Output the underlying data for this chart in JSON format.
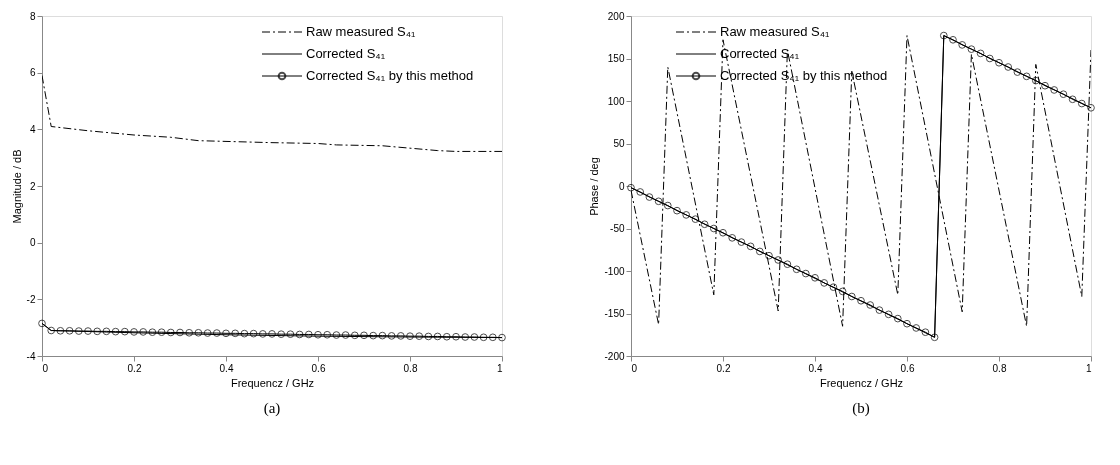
{
  "chart_data": [
    {
      "type": "line",
      "xlabel": "Frequencz / GHz",
      "ylabel": "Magnitude / dB",
      "xlim": [
        0,
        1
      ],
      "ylim": [
        -4,
        8
      ],
      "xticks": [
        0,
        0.2,
        0.4,
        0.6,
        0.8,
        1
      ],
      "yticks": [
        -4,
        -2,
        0,
        2,
        4,
        6,
        8
      ],
      "grid": false,
      "legend": "top right",
      "annotations": [
        "(a)"
      ],
      "series": [
        {
          "name": "Raw measured S₄₁",
          "color": "#000000",
          "line_style": "dashed",
          "marker": "none",
          "x": [
            0,
            0.02,
            0.1,
            0.2,
            0.28,
            0.34,
            0.5,
            0.6,
            0.64,
            0.74,
            0.86,
            0.9,
            1
          ],
          "values": [
            5.9,
            4.1,
            3.95,
            3.8,
            3.72,
            3.6,
            3.53,
            3.5,
            3.45,
            3.42,
            3.25,
            3.22,
            3.22
          ]
        },
        {
          "name": "Corrected S₄₁",
          "color": "#000000",
          "line_style": "solid",
          "marker": "none",
          "x": [
            0,
            0.02,
            0.2,
            0.4,
            0.6,
            0.8,
            1
          ],
          "values": [
            -2.85,
            -3.1,
            -3.18,
            -3.25,
            -3.3,
            -3.33,
            -3.35
          ]
        },
        {
          "name": "Corrected S₄₁ by this method",
          "color": "#000000",
          "line_style": "solid",
          "marker": "circle",
          "x": [
            0,
            0.02,
            0.04,
            0.06,
            0.08,
            0.1,
            0.12,
            0.14,
            0.16,
            0.18,
            0.2,
            0.22,
            0.24,
            0.26,
            0.28,
            0.3,
            0.32,
            0.34,
            0.36,
            0.38,
            0.4,
            0.42,
            0.44,
            0.46,
            0.48,
            0.5,
            0.52,
            0.54,
            0.56,
            0.58,
            0.6,
            0.62,
            0.64,
            0.66,
            0.68,
            0.7,
            0.72,
            0.74,
            0.76,
            0.78,
            0.8,
            0.82,
            0.84,
            0.86,
            0.88,
            0.9,
            0.92,
            0.94,
            0.96,
            0.98,
            1
          ],
          "values": [
            -2.85,
            -3.1,
            -3.11,
            -3.11,
            -3.12,
            -3.12,
            -3.13,
            -3.13,
            -3.14,
            -3.14,
            -3.15,
            -3.15,
            -3.16,
            -3.16,
            -3.17,
            -3.17,
            -3.18,
            -3.18,
            -3.19,
            -3.19,
            -3.2,
            -3.2,
            -3.21,
            -3.21,
            -3.22,
            -3.22,
            -3.23,
            -3.23,
            -3.24,
            -3.24,
            -3.25,
            -3.25,
            -3.26,
            -3.26,
            -3.27,
            -3.27,
            -3.28,
            -3.28,
            -3.29,
            -3.29,
            -3.3,
            -3.3,
            -3.31,
            -3.31,
            -3.32,
            -3.32,
            -3.33,
            -3.33,
            -3.34,
            -3.34,
            -3.35
          ]
        }
      ]
    },
    {
      "type": "line",
      "xlabel": "Frequencz / GHz",
      "ylabel": "Phase / deg",
      "xlim": [
        0,
        1
      ],
      "ylim": [
        -200,
        200
      ],
      "xticks": [
        0,
        0.2,
        0.4,
        0.6,
        0.8,
        1
      ],
      "yticks": [
        -200,
        -150,
        -100,
        -50,
        0,
        50,
        100,
        150,
        200
      ],
      "grid": false,
      "legend": "top left",
      "annotations": [
        "(b)"
      ],
      "series": [
        {
          "name": "Raw measured S₄₁",
          "color": "#000000",
          "line_style": "dashed",
          "marker": "none",
          "x": [
            0,
            0.06,
            0.08,
            0.18,
            0.2,
            0.32,
            0.34,
            0.46,
            0.48,
            0.58,
            0.6,
            0.72,
            0.74,
            0.86,
            0.88,
            0.98,
            1
          ],
          "values": [
            -5,
            -163,
            140,
            -128,
            172,
            -147,
            160,
            -165,
            135,
            -128,
            177,
            -148,
            155,
            -165,
            143,
            -130,
            160
          ]
        },
        {
          "name": "Corrected S₄₁",
          "color": "#000000",
          "line_style": "solid",
          "marker": "none",
          "x": [
            0,
            0.66,
            0.68,
            1
          ],
          "values": [
            -2,
            -178,
            177,
            92
          ]
        },
        {
          "name": "Corrected S₄₁ by this method",
          "color": "#000000",
          "line_style": "solid",
          "marker": "circle",
          "x": [
            0,
            0.02,
            0.04,
            0.06,
            0.08,
            0.1,
            0.12,
            0.14,
            0.16,
            0.18,
            0.2,
            0.22,
            0.24,
            0.26,
            0.28,
            0.3,
            0.32,
            0.34,
            0.36,
            0.38,
            0.4,
            0.42,
            0.44,
            0.46,
            0.48,
            0.5,
            0.52,
            0.54,
            0.56,
            0.58,
            0.6,
            0.62,
            0.64,
            0.66,
            0.68,
            0.7,
            0.72,
            0.74,
            0.76,
            0.78,
            0.8,
            0.82,
            0.84,
            0.86,
            0.88,
            0.9,
            0.92,
            0.94,
            0.96,
            0.98,
            1
          ],
          "values": [
            -2,
            -7,
            -13,
            -18,
            -23,
            -29,
            -34,
            -39,
            -45,
            -50,
            -55,
            -61,
            -66,
            -71,
            -77,
            -82,
            -87,
            -92,
            -98,
            -103,
            -108,
            -114,
            -119,
            -124,
            -130,
            -135,
            -140,
            -146,
            -151,
            -156,
            -162,
            -167,
            -172,
            -178,
            177,
            172,
            166,
            161,
            156,
            150,
            145,
            140,
            134,
            129,
            124,
            118,
            113,
            108,
            102,
            97,
            92
          ]
        }
      ]
    }
  ]
}
